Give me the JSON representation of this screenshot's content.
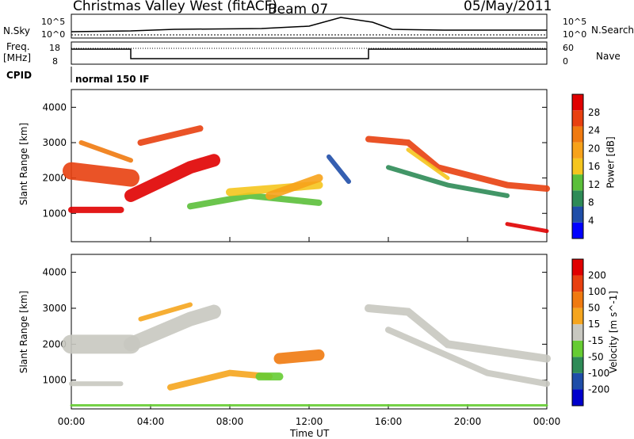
{
  "header": {
    "radar": "Christmas Valley West (fitACF)",
    "beam": "Beam 07",
    "date": "05/May/2011"
  },
  "labels": {
    "nsky": "N.Sky",
    "nsearch": "N.Search",
    "freq": "Freq.",
    "freq_unit": "[MHz]",
    "nave": "Nave",
    "cpid": "CPID",
    "cpid_value": "normal 150 IF",
    "tick_1e5_left": "10^5",
    "tick_1e0_left": "10^0",
    "tick_1e5_right": "10^5",
    "tick_1e0_right": "10^0",
    "freq_18": "18",
    "freq_8": "8",
    "nave_60": "60",
    "nave_0": "0"
  },
  "chart_data": [
    {
      "type": "heatmap",
      "name": "power",
      "ylabel": "Slant Range [km]",
      "ylim": [
        200,
        4500
      ],
      "yticks": [
        "4000",
        "3000",
        "2000",
        "1000"
      ],
      "colorbar_label": "Power [dB]",
      "colorbar_ticks": [
        "28",
        "24",
        "20",
        "16",
        "12",
        "8",
        "4"
      ],
      "colors": [
        "#0000ff",
        "#1f4ea8",
        "#2e8b57",
        "#5bbf3a",
        "#f5c51e",
        "#f7a21a",
        "#f07a10",
        "#e84010",
        "#e00000"
      ]
    },
    {
      "type": "heatmap",
      "name": "velocity",
      "ylabel": "Slant Range [km]",
      "ylim": [
        200,
        4500
      ],
      "yticks": [
        "4000",
        "3000",
        "2000",
        "1000"
      ],
      "colorbar_label": "Velocity [m s^-1]",
      "colorbar_ticks": [
        "200",
        "100",
        "50",
        "15",
        "-15",
        "-50",
        "-100",
        "-200"
      ],
      "colors": [
        "#0000cc",
        "#1f4ea8",
        "#2e8b57",
        "#66cc33",
        "#c8c8c0",
        "#f5a51e",
        "#f07a10",
        "#e84010",
        "#e00000"
      ],
      "xlabel": "Time UT",
      "xticks": [
        "00:00",
        "04:00",
        "08:00",
        "12:00",
        "16:00",
        "20:00",
        "00:00"
      ]
    }
  ]
}
